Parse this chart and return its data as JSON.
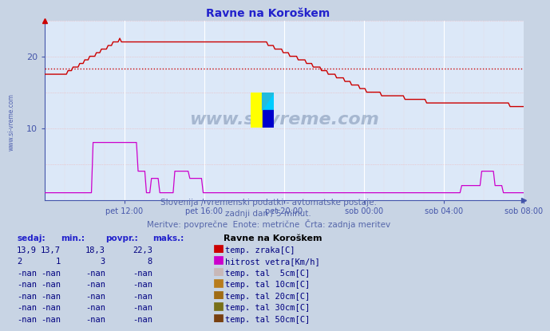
{
  "title": "Ravne na Koroškem",
  "bg_color": "#c8d4e4",
  "plot_bg_color": "#dce8f8",
  "title_color": "#2222cc",
  "axis_color": "#4455aa",
  "text_color": "#000080",
  "subtitle_color": "#5566aa",
  "subtitle_lines": [
    "Slovenija / vremenski podatki - avtomatske postaje.",
    "zadnji dan / 5 minut.",
    "Meritve: povprečne  Enote: metrične  Črta: zadnja meritev"
  ],
  "xlabel_ticks": [
    "pet 12:00",
    "pet 16:00",
    "pet 20:00",
    "sob 00:00",
    "sob 04:00",
    "sob 08:00"
  ],
  "ylim": [
    0,
    25
  ],
  "avg_line_y": 18.3,
  "avg_line_color": "#cc0000",
  "temp_line_color": "#cc0000",
  "wind_line_color": "#cc00cc",
  "watermark_text": "www.si-vreme.com",
  "watermark_color": "#1a3a6a",
  "watermark_alpha": 0.28,
  "left_text": "www.si-vreme.com",
  "table_header": [
    "sedaj:",
    "min.:",
    "povpr.:",
    "maks.:"
  ],
  "station_label": "Ravne na Koroškem",
  "table_rows": [
    {
      "sedaj": "13,9",
      "min": "13,7",
      "povpr": "18,3",
      "maks": "22,3",
      "color": "#cc0000",
      "label": "temp. zraka[C]"
    },
    {
      "sedaj": "2",
      "min": "1",
      "povpr": "3",
      "maks": "8",
      "color": "#cc00cc",
      "label": "hitrost vetra[Km/h]"
    },
    {
      "sedaj": "-nan",
      "min": "-nan",
      "povpr": "-nan",
      "maks": "-nan",
      "color": "#c8b8b8",
      "label": "temp. tal  5cm[C]"
    },
    {
      "sedaj": "-nan",
      "min": "-nan",
      "povpr": "-nan",
      "maks": "-nan",
      "color": "#b87c1c",
      "label": "temp. tal 10cm[C]"
    },
    {
      "sedaj": "-nan",
      "min": "-nan",
      "povpr": "-nan",
      "maks": "-nan",
      "color": "#a06c14",
      "label": "temp. tal 20cm[C]"
    },
    {
      "sedaj": "-nan",
      "min": "-nan",
      "povpr": "-nan",
      "maks": "-nan",
      "color": "#787018",
      "label": "temp. tal 30cm[C]"
    },
    {
      "sedaj": "-nan",
      "min": "-nan",
      "povpr": "-nan",
      "maks": "-nan",
      "color": "#784010",
      "label": "temp. tal 50cm[C]"
    }
  ],
  "num_points": 288
}
